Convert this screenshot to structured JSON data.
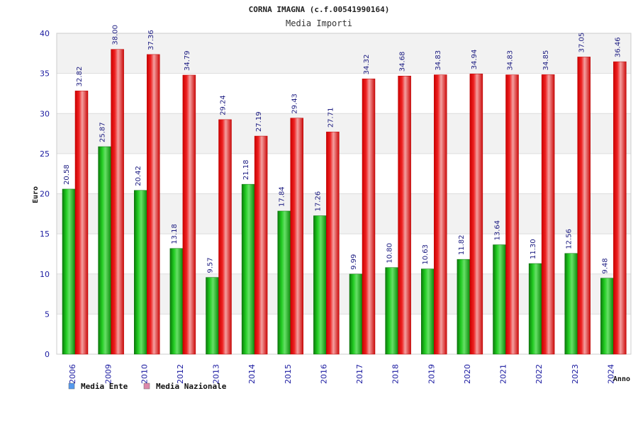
{
  "chart_data": {
    "type": "bar",
    "title": "CORNA IMAGNA (c.f.00541990164)",
    "subtitle": "Media Importi",
    "ylabel": "Euro",
    "xlabel": "Anno",
    "ylim": [
      0,
      40
    ],
    "yticks": [
      0,
      5,
      10,
      15,
      20,
      25,
      30,
      35,
      40
    ],
    "categories": [
      "2006",
      "2009",
      "2010",
      "2012",
      "2013",
      "2014",
      "2015",
      "2016",
      "2017",
      "2018",
      "2019",
      "2020",
      "2021",
      "2022",
      "2023",
      "2024"
    ],
    "series": [
      {
        "name": "Media Ente",
        "color": "#22cc22",
        "legend_color": "#5599ee",
        "values": [
          20.58,
          25.87,
          20.42,
          13.18,
          9.57,
          21.18,
          17.84,
          17.26,
          9.99,
          10.8,
          10.63,
          11.82,
          13.64,
          11.3,
          12.56,
          9.48
        ],
        "labels": [
          "20.58",
          "25.87",
          "20.42",
          "13.18",
          "9.57",
          "21.18",
          "17.84",
          "17.26",
          "9.99",
          "10.80",
          "10.63",
          "11.82",
          "13.64",
          "11.30",
          "12.56",
          "9.48"
        ]
      },
      {
        "name": "Media Nazionale",
        "color": "#ee2222",
        "legend_color": "#dd88aa",
        "values": [
          32.82,
          38.0,
          37.36,
          34.79,
          29.24,
          27.19,
          29.43,
          27.71,
          34.32,
          34.68,
          34.83,
          34.94,
          34.83,
          34.85,
          37.05,
          36.46
        ],
        "labels": [
          "32.82",
          "38.00",
          "37.36",
          "34.79",
          "29.24",
          "27.19",
          "29.43",
          "27.71",
          "34.32",
          "34.68",
          "34.83",
          "34.94",
          "34.83",
          "34.85",
          "37.05",
          "36.46"
        ]
      }
    ],
    "grid": true,
    "legend_position": "bottom-left"
  }
}
